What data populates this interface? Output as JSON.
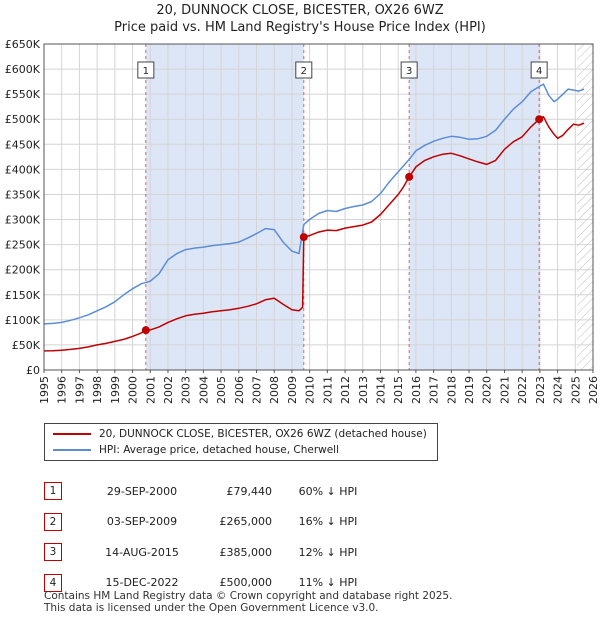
{
  "header": {
    "title_line1": "20, DUNNOCK CLOSE, BICESTER, OX26 6WZ",
    "title_line2": "Price paid vs. HM Land Registry's House Price Index (HPI)"
  },
  "colors": {
    "price": "#c00000",
    "hpi": "#5b8ed6",
    "shade": "#dde6f6",
    "grid": "#d4d4d4",
    "marker_line": "#e06060"
  },
  "chart_data": {
    "type": "line",
    "title": "Price paid vs. HM Land Registry's House Price Index (HPI)",
    "xlim": [
      1995,
      2026
    ],
    "ylim": [
      0,
      650000
    ],
    "y_ticks": [
      0,
      50000,
      100000,
      150000,
      200000,
      250000,
      300000,
      350000,
      400000,
      450000,
      500000,
      550000,
      600000,
      650000
    ],
    "y_tick_labels": [
      "£0",
      "£50K",
      "£100K",
      "£150K",
      "£200K",
      "£250K",
      "£300K",
      "£350K",
      "£400K",
      "£450K",
      "£500K",
      "£550K",
      "£600K",
      "£650K"
    ],
    "x_ticks": [
      1995,
      1996,
      1997,
      1998,
      1999,
      2000,
      2001,
      2002,
      2003,
      2004,
      2005,
      2006,
      2007,
      2008,
      2009,
      2010,
      2011,
      2012,
      2013,
      2014,
      2015,
      2016,
      2017,
      2018,
      2019,
      2020,
      2021,
      2022,
      2023,
      2024,
      2025,
      2026
    ],
    "shaded_ranges": [
      [
        2000.75,
        2009.67
      ],
      [
        2015.62,
        2022.96
      ]
    ],
    "forecast_hatch_from": 2025.1,
    "series": [
      {
        "name": "20, DUNNOCK CLOSE, BICESTER, OX26 6WZ (detached house)",
        "color": "#c00000",
        "x": [
          1995.0,
          1995.5,
          1996.0,
          1996.5,
          1997.0,
          1997.5,
          1998.0,
          1998.5,
          1999.0,
          1999.5,
          2000.0,
          2000.5,
          2000.75,
          2001.0,
          2001.5,
          2002.0,
          2002.5,
          2003.0,
          2003.5,
          2004.0,
          2004.5,
          2005.0,
          2005.5,
          2006.0,
          2006.5,
          2007.0,
          2007.5,
          2008.0,
          2008.5,
          2009.0,
          2009.4,
          2009.6,
          2009.67,
          2010.0,
          2010.5,
          2011.0,
          2011.5,
          2012.0,
          2012.5,
          2013.0,
          2013.5,
          2014.0,
          2014.5,
          2015.0,
          2015.3,
          2015.62,
          2016.0,
          2016.5,
          2017.0,
          2017.5,
          2018.0,
          2018.5,
          2019.0,
          2019.5,
          2020.0,
          2020.5,
          2021.0,
          2021.5,
          2022.0,
          2022.5,
          2022.96,
          2023.2,
          2023.5,
          2023.8,
          2024.0,
          2024.3,
          2024.6,
          2024.9,
          2025.2,
          2025.5
        ],
        "values": [
          38000,
          38500,
          39500,
          41000,
          43000,
          46000,
          50000,
          53000,
          57000,
          61000,
          67000,
          74000,
          79440,
          80000,
          86000,
          95000,
          102000,
          108000,
          111000,
          113000,
          116000,
          118000,
          120000,
          123000,
          127000,
          132000,
          140000,
          143000,
          131000,
          120000,
          118000,
          125000,
          265000,
          268000,
          275000,
          279000,
          278000,
          283000,
          286000,
          289000,
          295000,
          310000,
          330000,
          350000,
          365000,
          385000,
          405000,
          418000,
          425000,
          430000,
          432000,
          427000,
          421000,
          415000,
          410000,
          418000,
          440000,
          455000,
          465000,
          485000,
          500000,
          505000,
          485000,
          470000,
          462000,
          468000,
          480000,
          490000,
          488000,
          492000
        ]
      },
      {
        "name": "HPI: Average price, detached house, Cherwell",
        "color": "#5b8ed6",
        "x": [
          1995.0,
          1995.5,
          1996.0,
          1996.5,
          1997.0,
          1997.5,
          1998.0,
          1998.5,
          1999.0,
          1999.5,
          2000.0,
          2000.5,
          2001.0,
          2001.5,
          2002.0,
          2002.5,
          2003.0,
          2003.5,
          2004.0,
          2004.5,
          2005.0,
          2005.5,
          2006.0,
          2006.5,
          2007.0,
          2007.5,
          2008.0,
          2008.5,
          2009.0,
          2009.4,
          2009.67,
          2010.0,
          2010.5,
          2011.0,
          2011.5,
          2012.0,
          2012.5,
          2013.0,
          2013.5,
          2014.0,
          2014.5,
          2015.0,
          2015.62,
          2016.0,
          2016.5,
          2017.0,
          2017.5,
          2018.0,
          2018.5,
          2019.0,
          2019.5,
          2020.0,
          2020.5,
          2021.0,
          2021.5,
          2022.0,
          2022.5,
          2022.96,
          2023.2,
          2023.5,
          2023.8,
          2024.0,
          2024.3,
          2024.6,
          2024.9,
          2025.2,
          2025.5
        ],
        "values": [
          92000,
          93000,
          95000,
          99000,
          104000,
          110000,
          118000,
          126000,
          136000,
          150000,
          162000,
          172000,
          177000,
          192000,
          220000,
          232000,
          240000,
          243000,
          245000,
          248000,
          250000,
          252000,
          255000,
          263000,
          272000,
          282000,
          280000,
          255000,
          237000,
          232000,
          290000,
          300000,
          312000,
          318000,
          316000,
          322000,
          326000,
          329000,
          336000,
          352000,
          375000,
          395000,
          420000,
          437000,
          448000,
          456000,
          462000,
          466000,
          464000,
          460000,
          461000,
          466000,
          478000,
          500000,
          520000,
          535000,
          555000,
          565000,
          570000,
          548000,
          535000,
          540000,
          550000,
          560000,
          558000,
          556000,
          560000
        ]
      }
    ],
    "sales": [
      {
        "n": "1",
        "x": 2000.75,
        "value": 79440
      },
      {
        "n": "2",
        "x": 2009.67,
        "value": 265000
      },
      {
        "n": "3",
        "x": 2015.62,
        "value": 385000
      },
      {
        "n": "4",
        "x": 2022.96,
        "value": 500000
      }
    ]
  },
  "legend": {
    "price_label": "20, DUNNOCK CLOSE, BICESTER, OX26 6WZ (detached house)",
    "hpi_label": "HPI: Average price, detached house, Cherwell"
  },
  "sales_table": [
    {
      "n": "1",
      "date": "29-SEP-2000",
      "price": "£79,440",
      "delta": "60% ↓ HPI"
    },
    {
      "n": "2",
      "date": "03-SEP-2009",
      "price": "£265,000",
      "delta": "16% ↓ HPI"
    },
    {
      "n": "3",
      "date": "14-AUG-2015",
      "price": "£385,000",
      "delta": "12% ↓ HPI"
    },
    {
      "n": "4",
      "date": "15-DEC-2022",
      "price": "£500,000",
      "delta": "11% ↓ HPI"
    }
  ],
  "footer": {
    "line1": "Contains HM Land Registry data © Crown copyright and database right 2025.",
    "line2": "This data is licensed under the Open Government Licence v3.0."
  }
}
